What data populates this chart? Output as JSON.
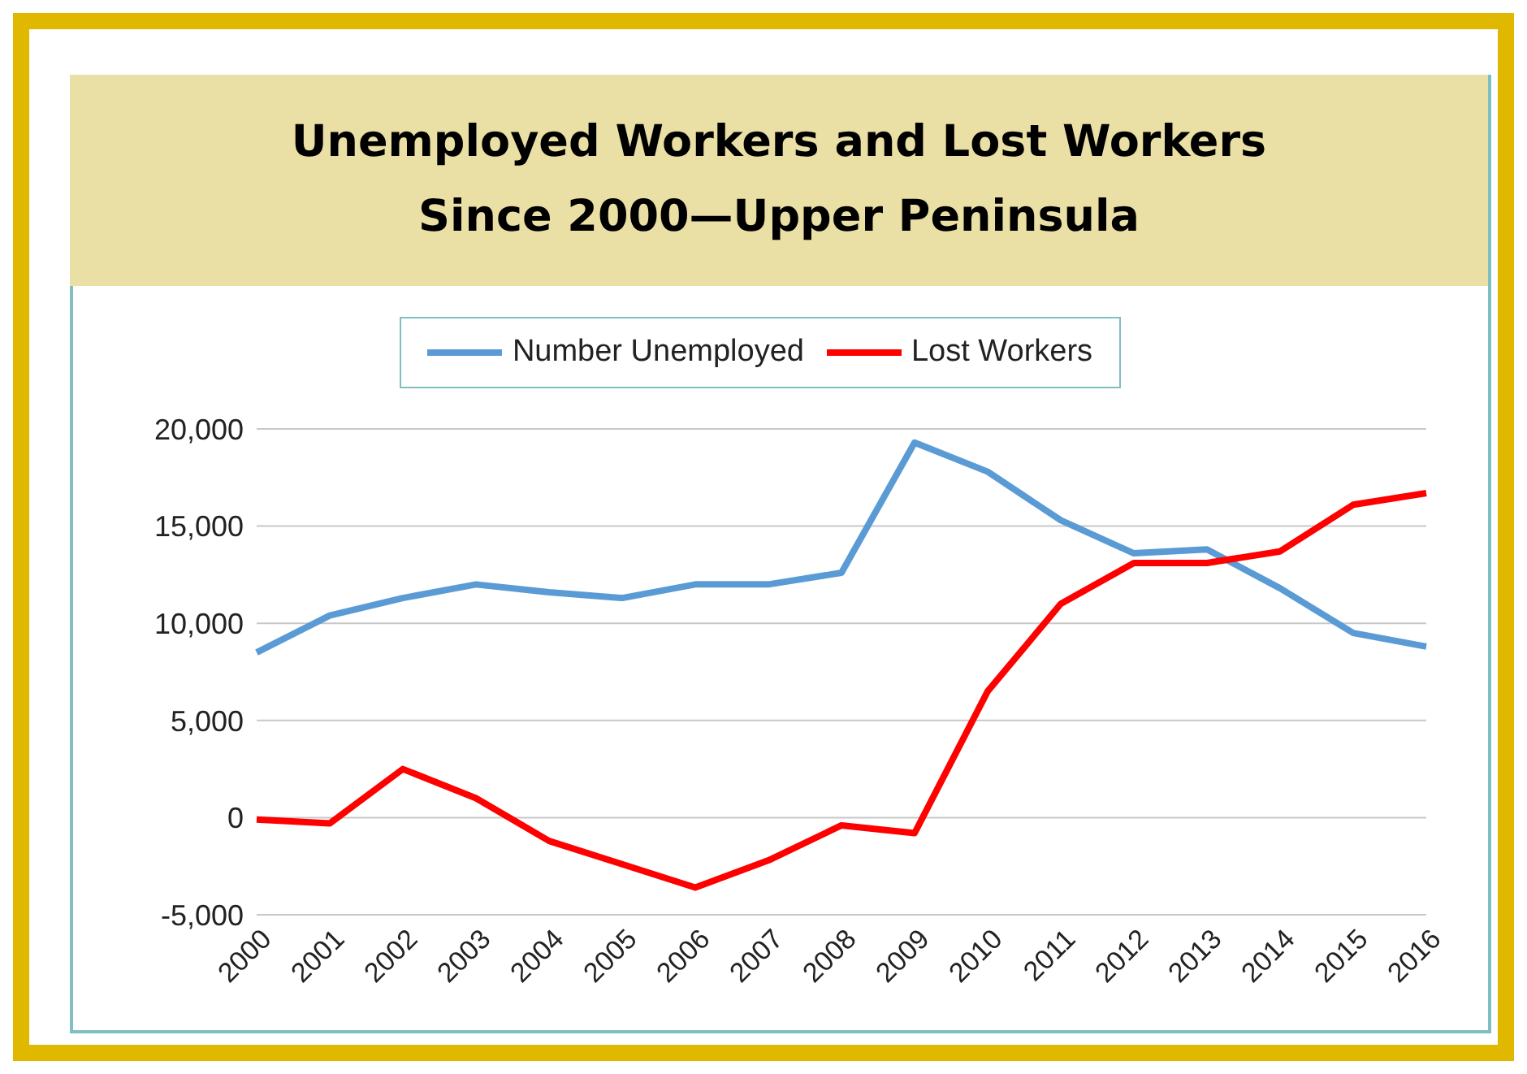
{
  "chart_data": {
    "type": "line",
    "title": "Unemployed Workers and Lost Workers\nSince 2000—Upper Peninsula",
    "categories": [
      "2000",
      "2001",
      "2002",
      "2003",
      "2004",
      "2005",
      "2006",
      "2007",
      "2008",
      "2009",
      "2010",
      "2011",
      "2012",
      "2013",
      "2014",
      "2015",
      "2016"
    ],
    "series": [
      {
        "name": "Number Unemployed",
        "color": "#5b9bd5",
        "values": [
          8500,
          10400,
          11300,
          12000,
          11600,
          11300,
          12000,
          12000,
          12600,
          19300,
          17800,
          15300,
          13600,
          13800,
          11800,
          9500,
          8800
        ]
      },
      {
        "name": "Lost Workers",
        "color": "#ff0000",
        "values": [
          -100,
          -300,
          2500,
          1000,
          -1200,
          -2400,
          -3600,
          -2200,
          -400,
          -800,
          6500,
          11000,
          13100,
          13100,
          13700,
          16100,
          16700
        ]
      }
    ],
    "ylim": [
      -5000,
      20000
    ],
    "yticks": [
      {
        "value": -5000,
        "label": "-5,000"
      },
      0,
      {
        "value": 5000,
        "label": "5,000"
      },
      {
        "value": 10000,
        "label": "10,000"
      },
      {
        "value": 15000,
        "label": "15,000"
      },
      {
        "value": 20000,
        "label": "20,000"
      }
    ],
    "grid": "y",
    "legend": "top",
    "marker": "none",
    "line_style": "solid"
  }
}
